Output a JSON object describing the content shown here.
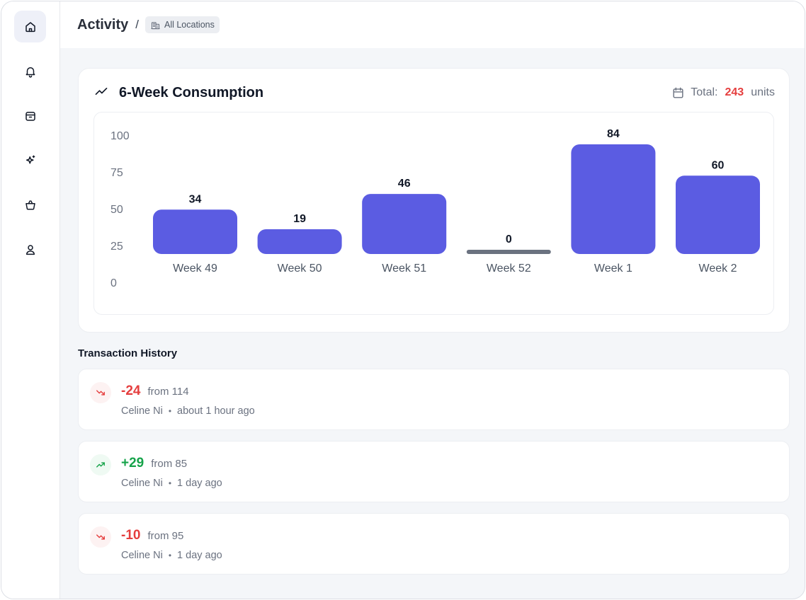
{
  "sidebar": {
    "items": [
      {
        "icon": "home-icon"
      },
      {
        "icon": "bell-icon"
      },
      {
        "icon": "package-icon"
      },
      {
        "icon": "sparkles-icon"
      },
      {
        "icon": "basket-icon"
      },
      {
        "icon": "user-icon"
      }
    ]
  },
  "header": {
    "title": "Activity",
    "separator": "/",
    "location": "All Locations"
  },
  "chart_card": {
    "title": "6-Week Consumption",
    "total_label": "Total:",
    "total_value": "243",
    "total_unit": "units"
  },
  "chart_data": {
    "type": "bar",
    "title": "6-Week Consumption",
    "categories": [
      "Week 49",
      "Week 50",
      "Week 51",
      "Week 52",
      "Week 1",
      "Week 2"
    ],
    "values": [
      34,
      19,
      46,
      0,
      84,
      60
    ],
    "yticks": [
      "100",
      "75",
      "50",
      "25",
      "0"
    ],
    "xlabel": "",
    "ylabel": "",
    "ylim": [
      0,
      100
    ],
    "grid": false
  },
  "transactions": {
    "title": "Transaction History",
    "items": [
      {
        "delta": "-24",
        "from": "from 114",
        "user": "Celine Ni",
        "time": "about 1 hour ago",
        "direction": "down"
      },
      {
        "delta": "+29",
        "from": "from 85",
        "user": "Celine Ni",
        "time": "1 day ago",
        "direction": "up"
      },
      {
        "delta": "-10",
        "from": "from 95",
        "user": "Celine Ni",
        "time": "1 day ago",
        "direction": "down"
      }
    ]
  },
  "colors": {
    "bar": "#5b5ce2",
    "zero_bar": "#6b7280",
    "negative": "#e53e3e",
    "positive": "#16a34a"
  }
}
